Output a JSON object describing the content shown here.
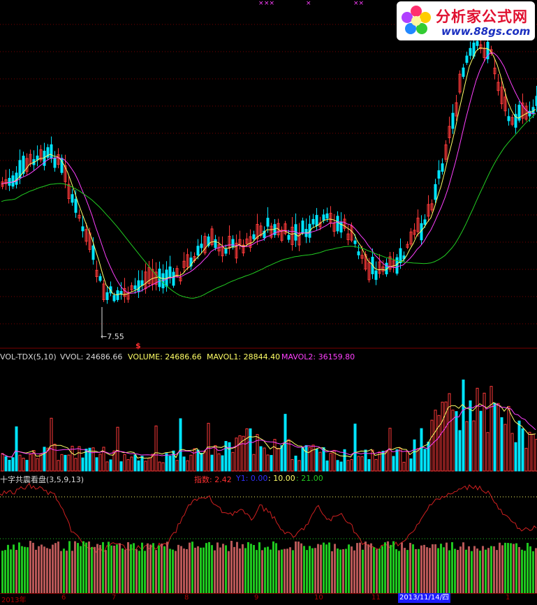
{
  "brand": {
    "title": "分析家公式网",
    "url": "www.88gs.com"
  },
  "price": {
    "low_marker": "←7.55",
    "signal_mark": "$",
    "top_marks": [
      "×",
      "××",
      "×",
      "××"
    ]
  },
  "volume_panel": {
    "name": "VOL-TDX(5,10)",
    "vvol": "VVOL: 24686.66",
    "volume": "VOLUME: 24686.66",
    "mavol1": "MAVOL1: 28844.40",
    "mavol2": "MAVOL2: 36159.80"
  },
  "indicator_panel": {
    "name": "十字共震看盘(3,5,9,13)",
    "index_label": "指数: 2.42",
    "y1_label": "Y1: 0.00",
    "v10": ": 10.00",
    "v21": ": 21.00"
  },
  "axis": {
    "labels": [
      "2013年",
      "6",
      "7",
      "8",
      "9",
      "10",
      "11",
      "1"
    ],
    "cursor_date": "2013/11/14/四"
  },
  "colors": {
    "up": "#ff3a3a",
    "down": "#00e5ff",
    "ma_fast": "#ffff66",
    "ma_mid": "#ff40ff",
    "ma_slow": "#22cc22",
    "grid": "#7a0000",
    "band_green": "#22dd22",
    "band_red": "#cc6060"
  }
}
